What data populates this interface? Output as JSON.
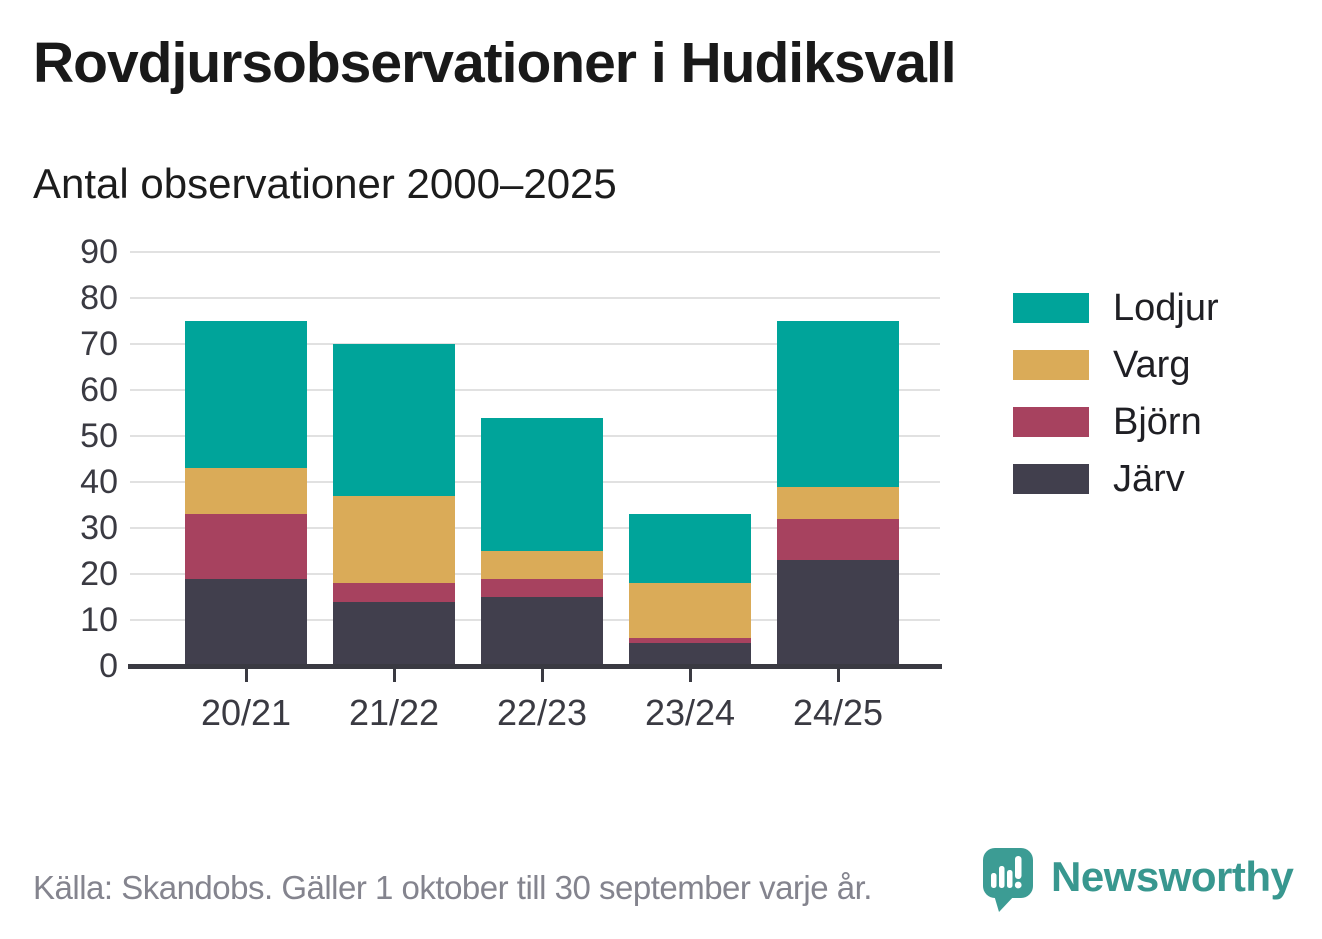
{
  "title": "Rovdjursobservationer i Hudiksvall",
  "subtitle": "Antal observationer 2000–2025",
  "source": "Källa: Skandobs. Gäller 1 oktober till 30 september varje år.",
  "brand": {
    "name": "Newsworthy",
    "icon": "speech-bubble-bar-chart-icon",
    "color": "#38978F",
    "icon_color": "#3C9C94"
  },
  "colors": {
    "lodjur": "#00A49A",
    "varg": "#DAAB58",
    "bjorn": "#A7425F",
    "jarv": "#413F4D",
    "axis": "#3A3A42",
    "grid": "#E1E1E1",
    "text": "#191919",
    "muted": "#84848E"
  },
  "chart_data": {
    "type": "bar",
    "stacked": true,
    "title": "Rovdjursobservationer i Hudiksvall",
    "subtitle": "Antal observationer 2000–2025",
    "categories": [
      "20/21",
      "21/22",
      "22/23",
      "23/24",
      "24/25"
    ],
    "series": [
      {
        "name": "Järv",
        "color_key": "jarv",
        "values": [
          19,
          14,
          15,
          5,
          23
        ]
      },
      {
        "name": "Björn",
        "color_key": "bjorn",
        "values": [
          14,
          4,
          4,
          1,
          9
        ]
      },
      {
        "name": "Varg",
        "color_key": "varg",
        "values": [
          10,
          19,
          6,
          12,
          7
        ]
      },
      {
        "name": "Lodjur",
        "color_key": "lodjur",
        "values": [
          32,
          33,
          29,
          15,
          36
        ]
      }
    ],
    "totals": [
      75,
      70,
      54,
      33,
      75
    ],
    "legend_order": [
      "Lodjur",
      "Varg",
      "Björn",
      "Järv"
    ],
    "ylim": [
      0,
      90
    ],
    "ytick_step": 10,
    "yticks": [
      0,
      10,
      20,
      30,
      40,
      50,
      60,
      70,
      80,
      90
    ],
    "grid": true,
    "legend_position": "right"
  }
}
